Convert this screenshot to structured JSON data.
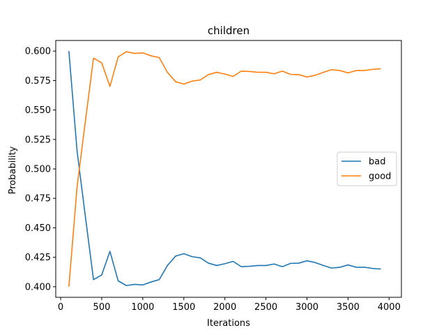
{
  "chart_data": {
    "type": "line",
    "title": "children",
    "xlabel": "Iterations",
    "ylabel": "Probability",
    "xlim": [
      -60,
      4150
    ],
    "ylim": [
      0.391,
      0.609
    ],
    "xticks": [
      0,
      500,
      1000,
      1500,
      2000,
      2500,
      3000,
      3500,
      4000
    ],
    "yticks": [
      0.4,
      0.425,
      0.45,
      0.475,
      0.5,
      0.525,
      0.55,
      0.575,
      0.6
    ],
    "ytick_labels": [
      "0.400",
      "0.425",
      "0.450",
      "0.475",
      "0.500",
      "0.525",
      "0.550",
      "0.575",
      "0.600"
    ],
    "legend_position": "center-right",
    "grid": false,
    "x": [
      100,
      200,
      300,
      400,
      500,
      600,
      700,
      800,
      900,
      1000,
      1100,
      1200,
      1300,
      1400,
      1500,
      1600,
      1700,
      1800,
      1900,
      2000,
      2100,
      2200,
      2300,
      2400,
      2500,
      2600,
      2700,
      2800,
      2900,
      3000,
      3100,
      3200,
      3300,
      3400,
      3500,
      3600,
      3700,
      3800,
      3900
    ],
    "series": [
      {
        "name": "bad",
        "color": "#1f77b4",
        "values": [
          0.6,
          0.515,
          0.46,
          0.406,
          0.41,
          0.43,
          0.405,
          0.401,
          0.402,
          0.4015,
          0.404,
          0.406,
          0.418,
          0.426,
          0.428,
          0.4255,
          0.4245,
          0.42,
          0.418,
          0.4195,
          0.4215,
          0.417,
          0.4173,
          0.418,
          0.418,
          0.4193,
          0.417,
          0.4198,
          0.42,
          0.422,
          0.4205,
          0.418,
          0.4158,
          0.4165,
          0.4185,
          0.4165,
          0.4165,
          0.4155,
          0.415
        ]
      },
      {
        "name": "good",
        "color": "#ff7f0e",
        "values": [
          0.4,
          0.485,
          0.54,
          0.594,
          0.59,
          0.57,
          0.595,
          0.5995,
          0.598,
          0.5985,
          0.596,
          0.5945,
          0.582,
          0.574,
          0.572,
          0.5745,
          0.5755,
          0.58,
          0.582,
          0.5805,
          0.5785,
          0.583,
          0.5827,
          0.582,
          0.582,
          0.5807,
          0.583,
          0.5802,
          0.58,
          0.578,
          0.5795,
          0.582,
          0.5842,
          0.5835,
          0.5815,
          0.5835,
          0.5835,
          0.5845,
          0.585
        ]
      }
    ]
  }
}
